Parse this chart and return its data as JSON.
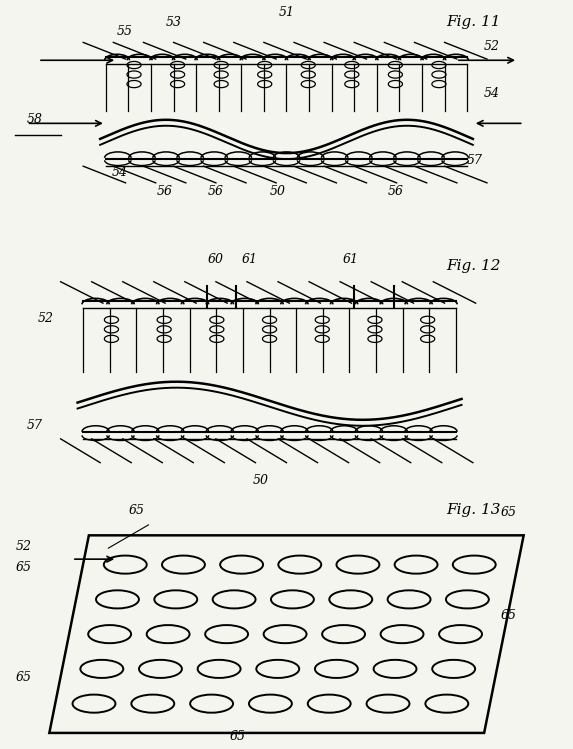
{
  "bg_color": "#f5f5f0",
  "fig_width": 5.73,
  "fig_height": 7.49,
  "fig11_label": "Fig. 11",
  "fig12_label": "Fig. 12",
  "fig13_label": "Fig. 13",
  "labels_11": {
    "51": "51",
    "52": "52",
    "53": "53",
    "54": "54",
    "55": "55",
    "56": "56",
    "57": "57",
    "58": "58",
    "50": "50"
  },
  "labels_12": {
    "60": "60",
    "61": "61",
    "52": "52",
    "57": "57",
    "50": "50"
  },
  "labels_13": {
    "52": "52",
    "65": "65"
  },
  "circle_rows": 5,
  "circle_cols": 7
}
